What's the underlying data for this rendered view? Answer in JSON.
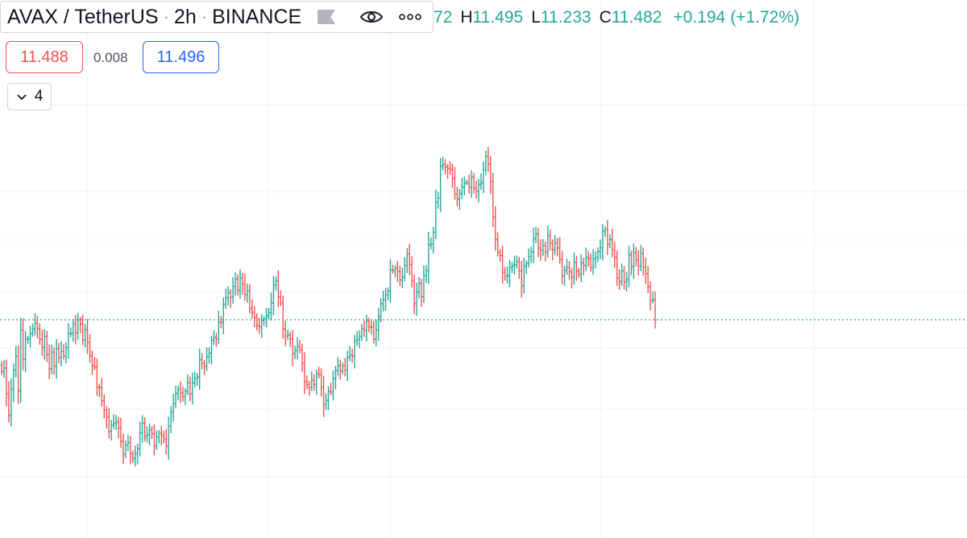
{
  "header": {
    "symbol": "AVAX / TetherUS",
    "interval": "2h",
    "exchange": "BINANCE",
    "separator": "·",
    "icons": [
      "flag-icon",
      "eye-icon",
      "more-dots-icon"
    ]
  },
  "ohlc": {
    "open_fragment": "72",
    "high_label": "H",
    "high": "11.495",
    "low_label": "L",
    "low": "11.233",
    "close_label": "C",
    "close": "11.482",
    "change": "+0.194",
    "change_pct": "(+1.72%)"
  },
  "quote": {
    "bid": "11.488",
    "spread": "0.008",
    "ask": "11.496"
  },
  "indicators": {
    "icon": "chevron-down-icon",
    "count": "4"
  },
  "colors": {
    "up": "#26a69a",
    "down": "#ef5350",
    "grid": "#f0f3fa",
    "price_line": "#26a69a",
    "ask": "#2962ff",
    "bid": "#ef5350",
    "text": "#131722"
  },
  "chart_data": {
    "type": "bar",
    "style": "ohlc_bars",
    "bar_close_levels": [
      -40.2,
      -37.4,
      -57.3,
      -74.1,
      -53.8,
      -39.1,
      -28.4,
      -55.1,
      -8.1,
      -30.8,
      -15.2,
      -14.7,
      -10.7,
      -7.0,
      -2.7,
      -6.9,
      -15.2,
      -21.6,
      -13.1,
      -26.9,
      -38.0,
      -25.1,
      -36.1,
      -22.5,
      -29.3,
      -24.5,
      -28.3,
      -21.5,
      -10.6,
      -10.5,
      -3.3,
      -10.1,
      -0.1,
      -3.4,
      -15.4,
      -7.8,
      -17.6,
      -28.1,
      -35.7,
      -36.9,
      -52.2,
      -52.8,
      -62.9,
      -69.9,
      -75.6,
      -86.6,
      -82.0,
      -80.5,
      -79.2,
      -84.0,
      -94.4,
      -104.4,
      -97.2,
      -95.4,
      -103.9,
      -107.6,
      -103.8,
      -100.2,
      -87.8,
      -80.2,
      -90.3,
      -89.4,
      -85.6,
      -88.6,
      -97.9,
      -91.1,
      -88.1,
      -90.0,
      -92.5,
      -98.2,
      -82.5,
      -71.6,
      -65.0,
      -57.0,
      -54.1,
      -56.7,
      -59.6,
      -55.6,
      -48.9,
      -57.5,
      -49.1,
      -45.6,
      -44.4,
      -31.0,
      -34.0,
      -36.1,
      -28.6,
      -25.9,
      -15.9,
      -13.8,
      -14.9,
      -2.0,
      -2.1,
      12.1,
      17.1,
      20.8,
      17.6,
      25.9,
      31.7,
      22.8,
      32.2,
      27.5,
      19.5,
      22.5,
      8.8,
      5.7,
      1.7,
      -4.5,
      -5.3,
      -0.5,
      0.8,
      3.1,
      5.5,
      13.0,
      26.9,
      30.0,
      17.6,
      13.2,
      -7.2,
      -12.7,
      -11.8,
      -15.0,
      -26.3,
      -23.9,
      -21.0,
      -23.2,
      -33.9,
      -48.0,
      -50.2,
      -52.6,
      -46.9,
      -50.1,
      -42.0,
      -42.6,
      -52.5,
      -65.6,
      -62.6,
      -55.5,
      -56.1,
      -45.6,
      -39.3,
      -35.6,
      -39.8,
      -35.6,
      -39.0,
      -29.0,
      -27.6,
      -28.0,
      -16.3,
      -15.3,
      -13.0,
      -6.8,
      -8.3,
      -1.1,
      -5.6,
      -5.7,
      -15.0,
      -7.8,
      2.6,
      12.4,
      15.5,
      19.5,
      22.3,
      38.6,
      38.2,
      39.9,
      37.4,
      30.8,
      33.1,
      42.1,
      51.2,
      42.9,
      30.0,
      12.4,
      21.5,
      28.2,
      17.9,
      34.2,
      38.3,
      58.1,
      58.8,
      67.9,
      91.0,
      94.3,
      119.1,
      120.4,
      118.5,
      117.6,
      116.6,
      109.6,
      97.4,
      93.6,
      97.8,
      103.0,
      106.2,
      106.2,
      102.8,
      110.8,
      102.1,
      99.8,
      105.0,
      106.3,
      116.3,
      126.7,
      120.6,
      107.2,
      79.5,
      62.3,
      52.5,
      49.9,
      36.8,
      33.8,
      34.2,
      40.6,
      41.7,
      42.8,
      45.1,
      37.8,
      26.3,
      41.7,
      43.6,
      49.0,
      52.6,
      62.9,
      66.6,
      55.7,
      54.0,
      57.5,
      52.6,
      65.1,
      59.5,
      54.5,
      59.5,
      55.7,
      46.6,
      33.8,
      38.3,
      40.5,
      37.1,
      33.0,
      44.6,
      37.8,
      35.4,
      44.2,
      42.2,
      48.2,
      47.3,
      40.4,
      47.1,
      48.4,
      53.0,
      55.9,
      68.4,
      70.2,
      58.6,
      62.3,
      54.5,
      48.4,
      32.2,
      29.6,
      37.9,
      29.3,
      31.0,
      50.3,
      41.4,
      52.1,
      46.2,
      41.7,
      51.5,
      40.8,
      35.8,
      25.7,
      14.8,
      15.7,
      -0.1
    ],
    "last_price": 11.482,
    "grid": true
  }
}
